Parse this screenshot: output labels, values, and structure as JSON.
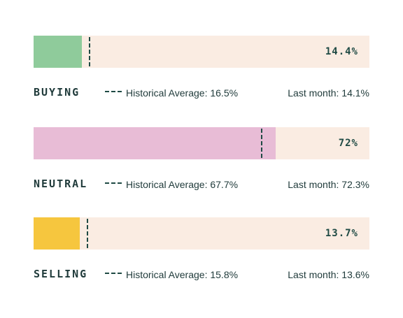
{
  "chart_data": {
    "type": "bar",
    "orientation": "horizontal",
    "xlim": [
      0,
      100
    ],
    "unit": "%",
    "bars": [
      {
        "category": "BUYING",
        "value": 14.4,
        "value_label": "14.4%",
        "historical_average": 16.5,
        "historical_label": "Historical Average: 16.5%",
        "last_month": 14.1,
        "last_month_label": "Last month: 14.1%",
        "color": "#8fcb9b"
      },
      {
        "category": "NEUTRAL",
        "value": 72,
        "value_label": "72%",
        "historical_average": 67.7,
        "historical_label": "Historical Average: 67.7%",
        "last_month": 72.3,
        "last_month_label": "Last month: 72.3%",
        "color": "#e8bcd6"
      },
      {
        "category": "SELLING",
        "value": 13.7,
        "value_label": "13.7%",
        "historical_average": 15.8,
        "historical_label": "Historical Average: 15.8%",
        "last_month": 13.6,
        "last_month_label": "Last month: 13.6%",
        "color": "#f6c63e"
      }
    ],
    "track_color": "#faece2",
    "marker_color": "#1f4a44"
  }
}
